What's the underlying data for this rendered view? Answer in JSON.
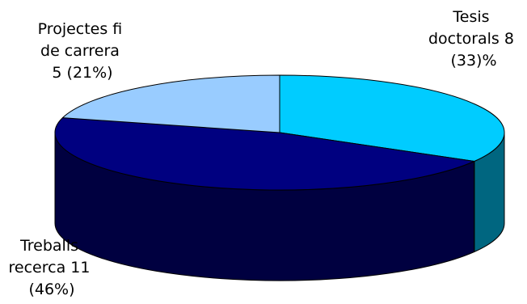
{
  "chart_data": {
    "type": "pie",
    "three_d": true,
    "title": "",
    "legend": "none",
    "slices": [
      {
        "key": "tesis",
        "category": "Tesis doctorals",
        "value": 8,
        "percent": 33,
        "label_lines": [
          "Tesis",
          "doctorals 8",
          "(33)%"
        ],
        "top_color": "#00ccff",
        "side_color": "#006680"
      },
      {
        "key": "treballs",
        "category": "Treballs recerca",
        "value": 11,
        "percent": 46,
        "label_lines": [
          "Treballs",
          "recerca 11",
          "(46%)"
        ],
        "top_color": "#000080",
        "side_color": "#000040"
      },
      {
        "key": "projectes",
        "category": "Projectes fi de carrera",
        "value": 5,
        "percent": 21,
        "label_lines": [
          "Projectes fi",
          "de carrera",
          "5 (21%)"
        ],
        "top_color": "#99ccff",
        "side_color": "#4d6680"
      }
    ]
  }
}
